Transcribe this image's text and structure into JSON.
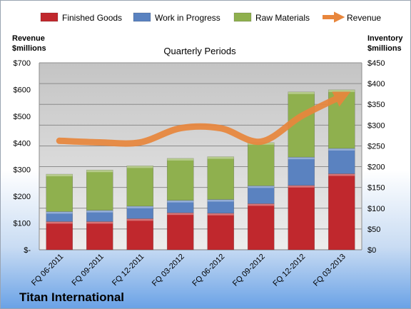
{
  "chart_data": {
    "type": "bar",
    "stacked": true,
    "subtitle": "Quarterly Periods",
    "company": "Titan International",
    "left_axis_title": [
      "Revenue",
      "$millions"
    ],
    "right_axis_title": [
      "Inventory",
      "$millions"
    ],
    "categories": [
      "FQ 06-2011",
      "FQ 09-2011",
      "FQ 12-2011",
      "FQ 03-2012",
      "FQ 06-2012",
      "FQ 09-2012",
      "FQ 12-2012",
      "FQ 03-2013"
    ],
    "series": [
      {
        "name": "Finished Goods",
        "axis": "right",
        "color": "#c0282d",
        "values": [
          68,
          68,
          75,
          89,
          88,
          111,
          155,
          183
        ]
      },
      {
        "name": "Work in Progress",
        "axis": "right",
        "color": "#5a82c0",
        "values": [
          24,
          27,
          30,
          30,
          33,
          43,
          68,
          61
        ]
      },
      {
        "name": "Raw Materials",
        "axis": "right",
        "color": "#8fb04e",
        "values": [
          90,
          97,
          97,
          101,
          103,
          104,
          157,
          141
        ]
      },
      {
        "name": "Revenue",
        "axis": "left",
        "type": "line",
        "color": "#e8863c",
        "values": [
          408,
          402,
          402,
          455,
          455,
          405,
          500,
          575
        ]
      }
    ],
    "left_axis": {
      "ylim": [
        0,
        700
      ],
      "ticks": [
        "$-",
        "$100",
        "$200",
        "$300",
        "$400",
        "$500",
        "$600",
        "$700"
      ]
    },
    "right_axis": {
      "ylim": [
        0,
        450
      ],
      "ticks": [
        "$0",
        "$50",
        "$100",
        "$150",
        "$200",
        "$250",
        "$300",
        "$350",
        "$400",
        "$450"
      ]
    },
    "legend_position": "top",
    "grid": true
  }
}
